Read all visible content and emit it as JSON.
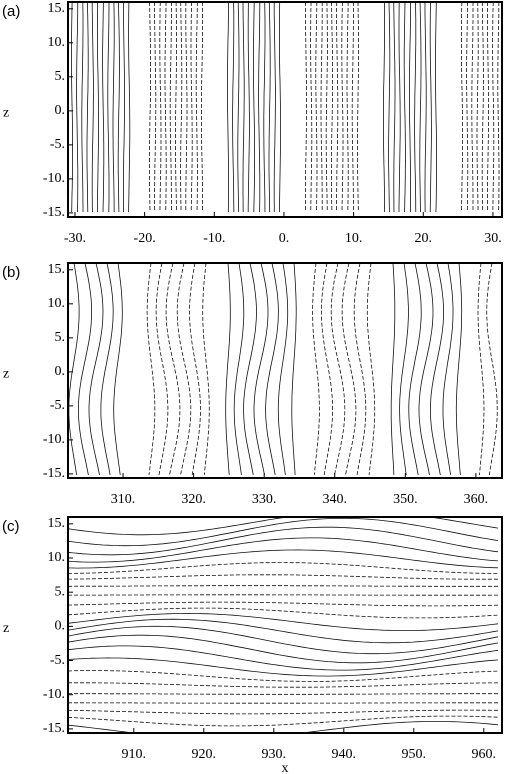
{
  "chart_data": [
    {
      "type": "contour",
      "title": "(a)",
      "ylabel": "z",
      "xlim": [
        -31,
        31.3
      ],
      "ylim": [
        -15.6,
        16
      ],
      "xticks": [
        {
          "value": -30,
          "label": "-30."
        },
        {
          "value": -20,
          "label": "-20."
        },
        {
          "value": -10,
          "label": "-10."
        },
        {
          "value": 0,
          "label": "0."
        },
        {
          "value": 10,
          "label": "10."
        },
        {
          "value": 20,
          "label": "20."
        },
        {
          "value": 30,
          "label": "30."
        }
      ],
      "yticks": [
        {
          "value": 15,
          "label": "15."
        },
        {
          "value": 10,
          "label": "10."
        },
        {
          "value": 5,
          "label": "5."
        },
        {
          "value": 0,
          "label": "0."
        },
        {
          "value": -5,
          "label": "-5."
        },
        {
          "value": -10,
          "label": "-10."
        },
        {
          "value": -15,
          "label": "-15."
        }
      ]
    },
    {
      "type": "contour",
      "title": "(b)",
      "ylabel": "z",
      "xlim": [
        302.2,
        363.7
      ],
      "ylim": [
        -15.6,
        16
      ],
      "xticks": [
        {
          "value": 310,
          "label": "310."
        },
        {
          "value": 320,
          "label": "320."
        },
        {
          "value": 330,
          "label": "330."
        },
        {
          "value": 340,
          "label": "340."
        },
        {
          "value": 350,
          "label": "350."
        },
        {
          "value": 360,
          "label": "360."
        }
      ],
      "yticks": [
        {
          "value": 15,
          "label": "15."
        },
        {
          "value": 10,
          "label": "10."
        },
        {
          "value": 5,
          "label": "5."
        },
        {
          "value": 0,
          "label": "0."
        },
        {
          "value": -5,
          "label": "-5."
        },
        {
          "value": -10,
          "label": "-10."
        },
        {
          "value": -15,
          "label": "-15."
        }
      ]
    },
    {
      "type": "contour",
      "title": "(c)",
      "ylabel": "z",
      "xlabel": "x",
      "xlim": [
        900.6,
        962.6
      ],
      "ylim": [
        -15.6,
        16
      ],
      "xticks": [
        {
          "value": 910,
          "label": "910."
        },
        {
          "value": 920,
          "label": "920."
        },
        {
          "value": 930,
          "label": "930."
        },
        {
          "value": 940,
          "label": "940."
        },
        {
          "value": 950,
          "label": "950."
        },
        {
          "value": 960,
          "label": "960."
        }
      ],
      "yticks": [
        {
          "value": 15,
          "label": "15."
        },
        {
          "value": 10,
          "label": "10."
        },
        {
          "value": 5,
          "label": "5."
        },
        {
          "value": 0,
          "label": "0."
        },
        {
          "value": -5,
          "label": "-5."
        },
        {
          "value": -10,
          "label": "-10."
        },
        {
          "value": -15,
          "label": "-15."
        }
      ]
    }
  ]
}
